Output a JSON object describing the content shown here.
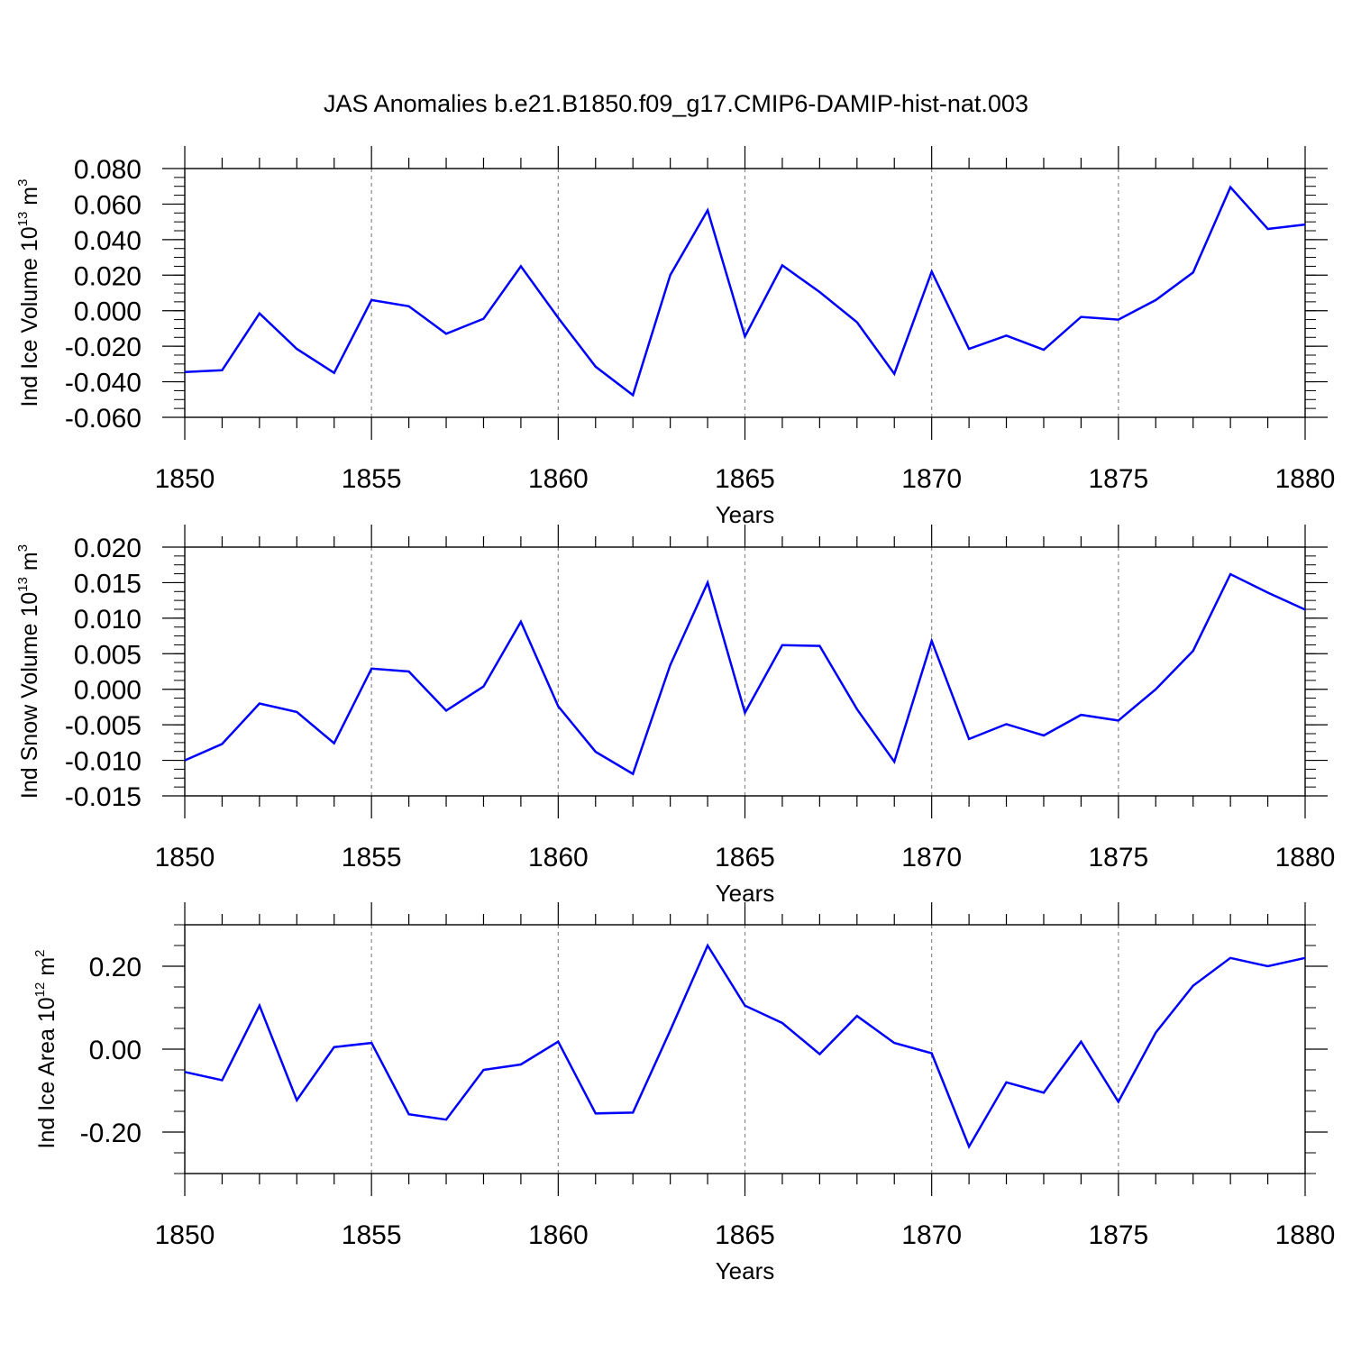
{
  "chart_data": {
    "title": "JAS Anomalies b.e21.B1850.f09_g17.CMIP6-DAMIP-hist-nat.003",
    "line_color": "#0000ff",
    "panels": [
      {
        "type": "line",
        "ylabel": {
          "pre": "Ind Ice Volume 10",
          "exp": "13",
          "unit": " m",
          "unit_exp": "3"
        },
        "xlabel": "Years",
        "xlim": [
          1850,
          1880
        ],
        "ylim": [
          -0.06,
          0.08
        ],
        "yticks": [
          -0.06,
          -0.04,
          -0.02,
          0.0,
          0.02,
          0.04,
          0.06,
          0.08
        ],
        "ytick_labels": [
          "-0.060",
          "-0.040",
          "-0.020",
          "0.000",
          "0.020",
          "0.040",
          "0.060",
          "0.080"
        ],
        "yminor_step": 0.005,
        "xticks": [
          1850,
          1855,
          1860,
          1865,
          1870,
          1875,
          1880
        ],
        "x": [
          1850,
          1851,
          1852,
          1853,
          1854,
          1855,
          1856,
          1857,
          1858,
          1859,
          1860,
          1861,
          1862,
          1863,
          1864,
          1865,
          1866,
          1867,
          1868,
          1869,
          1870,
          1871,
          1872,
          1873,
          1874,
          1875,
          1876,
          1877,
          1878,
          1879,
          1880
        ],
        "values": [
          -0.0345,
          -0.0335,
          -0.0015,
          -0.0215,
          -0.035,
          0.006,
          0.0025,
          -0.013,
          -0.0045,
          0.025,
          -0.004,
          -0.0315,
          -0.0475,
          0.02,
          0.0565,
          -0.0145,
          0.0255,
          0.0105,
          -0.0065,
          -0.0355,
          0.022,
          -0.0215,
          -0.014,
          -0.022,
          -0.0035,
          -0.005,
          0.006,
          0.0215,
          0.0695,
          0.046,
          0.0485
        ]
      },
      {
        "type": "line",
        "ylabel": {
          "pre": "Ind Snow Volume 10",
          "exp": "13",
          "unit": " m",
          "unit_exp": "3"
        },
        "xlabel": "Years",
        "xlim": [
          1850,
          1880
        ],
        "ylim": [
          -0.015,
          0.02
        ],
        "yticks": [
          -0.015,
          -0.01,
          -0.005,
          0.0,
          0.005,
          0.01,
          0.015,
          0.02
        ],
        "ytick_labels": [
          "-0.015",
          "-0.010",
          "-0.005",
          "0.000",
          "0.005",
          "0.010",
          "0.015",
          "0.020"
        ],
        "yminor_step": 0.00125,
        "xticks": [
          1850,
          1855,
          1860,
          1865,
          1870,
          1875,
          1880
        ],
        "x": [
          1850,
          1851,
          1852,
          1853,
          1854,
          1855,
          1856,
          1857,
          1858,
          1859,
          1860,
          1861,
          1862,
          1863,
          1864,
          1865,
          1866,
          1867,
          1868,
          1869,
          1870,
          1871,
          1872,
          1873,
          1874,
          1875,
          1876,
          1877,
          1878,
          1879,
          1880
        ],
        "values": [
          -0.01,
          -0.0077,
          -0.002,
          -0.0032,
          -0.0076,
          0.0029,
          0.0025,
          -0.003,
          0.0004,
          0.0095,
          -0.0024,
          -0.0088,
          -0.0119,
          0.0034,
          0.015,
          -0.0033,
          0.0062,
          0.0061,
          -0.0028,
          -0.0102,
          0.0068,
          -0.007,
          -0.0049,
          -0.0065,
          -0.0036,
          -0.0044,
          0.0,
          0.0054,
          0.0162,
          0.0136,
          0.0112
        ]
      },
      {
        "type": "line",
        "ylabel": {
          "pre": "Ind Ice Area 10",
          "exp": "12",
          "unit": " m",
          "unit_exp": "2"
        },
        "xlabel": "Years",
        "xlim": [
          1850,
          1880
        ],
        "ylim": [
          -0.3,
          0.3
        ],
        "yticks": [
          -0.2,
          0.0,
          0.2
        ],
        "ytick_labels": [
          "-0.20",
          "0.00",
          "0.20"
        ],
        "yminor_step": 0.05,
        "xticks": [
          1850,
          1855,
          1860,
          1865,
          1870,
          1875,
          1880
        ],
        "x": [
          1850,
          1851,
          1852,
          1853,
          1854,
          1855,
          1856,
          1857,
          1858,
          1859,
          1860,
          1861,
          1862,
          1863,
          1864,
          1865,
          1866,
          1867,
          1868,
          1869,
          1870,
          1871,
          1872,
          1873,
          1874,
          1875,
          1876,
          1877,
          1878,
          1879,
          1880
        ],
        "values": [
          -0.055,
          -0.075,
          0.105,
          -0.123,
          0.005,
          0.015,
          -0.157,
          -0.17,
          -0.05,
          -0.037,
          0.018,
          -0.155,
          -0.153,
          0.045,
          0.25,
          0.105,
          0.063,
          -0.012,
          0.08,
          0.015,
          -0.01,
          -0.235,
          -0.08,
          -0.105,
          0.018,
          -0.127,
          0.04,
          0.153,
          0.22,
          0.2,
          0.22
        ]
      }
    ]
  }
}
